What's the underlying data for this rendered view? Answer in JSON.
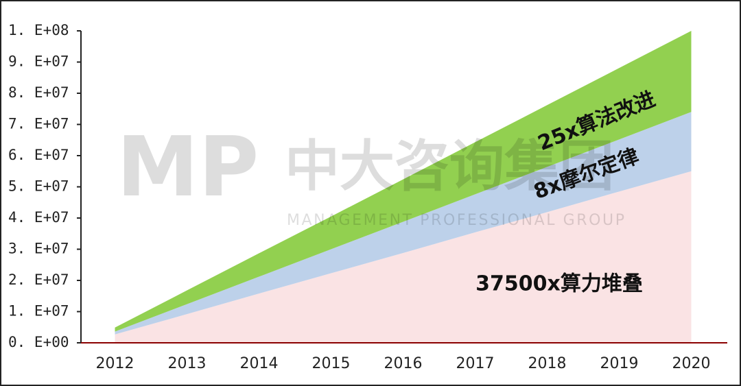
{
  "chart_data": {
    "type": "stacked-area",
    "categories": [
      "2012",
      "2013",
      "2014",
      "2015",
      "2016",
      "2017",
      "2018",
      "2019",
      "2020"
    ],
    "series": [
      {
        "name": "37500x算力堆叠",
        "color": "#fae3e4",
        "values": [
          2700000,
          9200000,
          15800000,
          22300000,
          28800000,
          35400000,
          41900000,
          48500000,
          55000000
        ]
      },
      {
        "name": "8x摩尔定律",
        "color": "#bdd1ea",
        "values": [
          900000,
          3200000,
          5400000,
          7700000,
          10000000,
          12200000,
          14500000,
          16700000,
          19000000
        ]
      },
      {
        "name": "25x算法改进",
        "color": "#92d050",
        "values": [
          1300000,
          4400000,
          7500000,
          10500000,
          13600000,
          16700000,
          19800000,
          22900000,
          26000000
        ]
      }
    ],
    "ylim": [
      0,
      100000000
    ],
    "yticks": [
      {
        "value": 0,
        "label": "0. E+00"
      },
      {
        "value": 10000000,
        "label": "1. E+07"
      },
      {
        "value": 20000000,
        "label": "2. E+07"
      },
      {
        "value": 30000000,
        "label": "3. E+07"
      },
      {
        "value": 40000000,
        "label": "4. E+07"
      },
      {
        "value": 50000000,
        "label": "5. E+07"
      },
      {
        "value": 60000000,
        "label": "6. E+07"
      },
      {
        "value": 70000000,
        "label": "7. E+07"
      },
      {
        "value": 80000000,
        "label": "8. E+07"
      },
      {
        "value": 90000000,
        "label": "9. E+07"
      },
      {
        "value": 100000000,
        "label": "1. E+08"
      }
    ],
    "watermark": {
      "logo": "MP",
      "name": "中大咨询集团",
      "subtitle": "MANAGEMENT PROFESSIONAL GROUP"
    }
  }
}
